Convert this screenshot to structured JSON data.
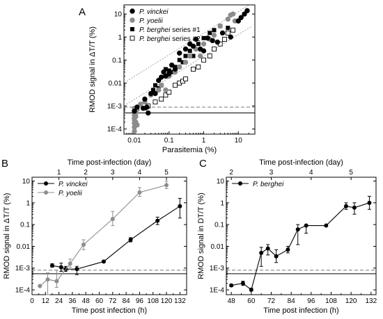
{
  "panel_labels": {
    "a": "A",
    "b": "B",
    "c": "C"
  },
  "colors": {
    "black": "#000000",
    "gray": "#8c8c8c",
    "light_gray": "#aaaaaa",
    "dashed": "#777777"
  },
  "chart_data": [
    {
      "id": "A",
      "type": "scatter",
      "xlabel": "Parasitemia (%)",
      "ylabel": "RMOD signal in ΔT/T (%)",
      "xscale": "log",
      "yscale": "log",
      "xlim": [
        0.005,
        30
      ],
      "ylim": [
        6e-05,
        25
      ],
      "xticks": [
        0.01,
        0.1,
        1,
        10
      ],
      "xtick_labels": [
        "0.01",
        "0.1",
        "1",
        "10"
      ],
      "yticks": [
        0.0001,
        0.001,
        0.01,
        0.1,
        1,
        10
      ],
      "ytick_labels": [
        "1E-4",
        "1E-3",
        "0.01",
        "0.1",
        "1",
        "10"
      ],
      "hlines": [
        {
          "y": 0.0005,
          "style": "solid"
        },
        {
          "y": 0.0009,
          "style": "dashed"
        }
      ],
      "fit_lines": [
        {
          "x": [
            0.006,
            25
          ],
          "y": [
            0.012,
            30
          ],
          "style": "dotted"
        },
        {
          "x": [
            0.006,
            25
          ],
          "y": [
            0.0012,
            3
          ],
          "style": "dotted"
        }
      ],
      "legend_position": "top-right",
      "series": [
        {
          "name": "P. vinckei",
          "marker": "filled-circle",
          "color": "#000000",
          "points": [
            [
              0.01,
              0.0006
            ],
            [
              0.012,
              0.0009
            ],
            [
              0.018,
              0.0008
            ],
            [
              0.023,
              0.0009
            ],
            [
              0.025,
              0.0005
            ],
            [
              0.02,
              0.002
            ],
            [
              0.03,
              0.0035
            ],
            [
              0.04,
              0.0035
            ],
            [
              0.05,
              0.013
            ],
            [
              0.06,
              0.018
            ],
            [
              0.07,
              0.03
            ],
            [
              0.08,
              0.02
            ],
            [
              0.1,
              0.025
            ],
            [
              0.12,
              0.06
            ],
            [
              0.15,
              0.04
            ],
            [
              0.2,
              0.2
            ],
            [
              0.3,
              0.3
            ],
            [
              0.4,
              0.5
            ],
            [
              0.5,
              0.4
            ],
            [
              0.6,
              0.8
            ],
            [
              0.8,
              0.3
            ],
            [
              1,
              0.25
            ],
            [
              1.3,
              0.9
            ],
            [
              1.8,
              0.7
            ],
            [
              2.5,
              0.6
            ],
            [
              3.5,
              1.5
            ],
            [
              6,
              1
            ],
            [
              10,
              5
            ],
            [
              12,
              7
            ],
            [
              15,
              10
            ],
            [
              18,
              14
            ]
          ]
        },
        {
          "name": "P. yoelii",
          "marker": "filled-circle",
          "color": "#8c8c8c",
          "points": [
            [
              0.01,
              8e-05
            ],
            [
              0.01,
              0.00012
            ],
            [
              0.01,
              0.00018
            ],
            [
              0.01,
              0.00025
            ],
            [
              0.01,
              0.0003
            ],
            [
              0.01,
              0.0004
            ],
            [
              0.01,
              0.0006
            ],
            [
              0.01,
              0.0008
            ],
            [
              0.011,
              0.0002
            ],
            [
              0.011,
              0.00035
            ],
            [
              0.011,
              0.0005
            ],
            [
              0.012,
              0.0007
            ],
            [
              0.012,
              0.00015
            ],
            [
              0.015,
              0.0012
            ],
            [
              0.02,
              0.0015
            ],
            [
              0.03,
              0.003
            ],
            [
              0.05,
              0.005
            ],
            [
              0.06,
              0.008
            ],
            [
              0.08,
              0.005
            ],
            [
              0.1,
              0.02
            ],
            [
              0.15,
              0.03
            ],
            [
              0.2,
              0.05
            ],
            [
              0.3,
              0.08
            ],
            [
              0.4,
              0.15
            ],
            [
              0.6,
              0.3
            ],
            [
              0.8,
              0.15
            ],
            [
              1,
              0.5
            ],
            [
              1.5,
              0.8
            ],
            [
              2,
              1.2
            ],
            [
              3,
              3
            ],
            [
              5,
              6
            ],
            [
              6,
              9
            ],
            [
              7,
              10
            ],
            [
              8,
              5
            ]
          ]
        },
        {
          "name": "P. berghei series #1",
          "marker": "filled-square",
          "color": "#000000",
          "points": [
            [
              0.02,
              0.0008
            ],
            [
              0.035,
              0.005
            ],
            [
              0.04,
              0.008
            ],
            [
              0.05,
              0.006
            ],
            [
              0.06,
              0.008
            ],
            [
              0.08,
              0.04
            ],
            [
              0.1,
              0.035
            ],
            [
              0.12,
              0.03
            ],
            [
              0.15,
              0.05
            ],
            [
              0.2,
              0.1
            ],
            [
              0.25,
              0.08
            ],
            [
              0.3,
              0.15
            ],
            [
              0.4,
              0.25
            ],
            [
              0.5,
              0.15
            ],
            [
              0.7,
              0.5
            ],
            [
              1,
              0.9
            ],
            [
              1.5,
              1.5
            ],
            [
              2,
              2
            ],
            [
              3,
              3
            ],
            [
              5,
              2.5
            ]
          ]
        },
        {
          "name": "P. berghei series #2",
          "marker": "open-square",
          "color": "#000000",
          "points": [
            [
              0.025,
              0.001
            ],
            [
              0.04,
              0.0015
            ],
            [
              0.06,
              0.002
            ],
            [
              0.08,
              0.003
            ],
            [
              0.1,
              0.004
            ],
            [
              0.15,
              0.008
            ],
            [
              0.2,
              0.01
            ],
            [
              0.25,
              0.012
            ],
            [
              0.3,
              0.015
            ],
            [
              0.5,
              0.04
            ],
            [
              0.7,
              0.05
            ],
            [
              1,
              0.1
            ],
            [
              1.5,
              0.15
            ],
            [
              2,
              0.3
            ],
            [
              3,
              0.5
            ],
            [
              4,
              0.8
            ],
            [
              5,
              1.5
            ],
            [
              7,
              2
            ]
          ]
        }
      ]
    },
    {
      "id": "B",
      "type": "line",
      "xlabel": "Time post infection (h)",
      "x2label": "Time post-infection (day)",
      "ylabel": "RMOD signal in ΔT/T (%)",
      "yscale": "log",
      "xlim": [
        0,
        138
      ],
      "ylim": [
        6e-05,
        15
      ],
      "xticks": [
        0,
        12,
        24,
        36,
        48,
        60,
        72,
        84,
        96,
        108,
        120,
        132
      ],
      "x2ticks": [
        1,
        2,
        3,
        4,
        5
      ],
      "yticks": [
        0.0001,
        0.001,
        0.01,
        0.1,
        1,
        10
      ],
      "ytick_labels": [
        "1E-4",
        "1E-3",
        "0.01",
        "0.1",
        "1",
        "10"
      ],
      "hlines": [
        {
          "y": 0.00055,
          "style": "solid"
        },
        {
          "y": 0.0008,
          "style": "dashed"
        }
      ],
      "legend_position": "top-left",
      "series": [
        {
          "name": "P. vinckei",
          "color": "#000000",
          "x": [
            18,
            26,
            30,
            40,
            64,
            88,
            112,
            132
          ],
          "y": [
            0.0013,
            0.0011,
            0.0009,
            0.0009,
            0.002,
            0.02,
            0.15,
            0.7
          ],
          "err_lo": [
            0.0011,
            0.0007,
            0.0007,
            0.0005,
            0.0018,
            0.016,
            0.1,
            0.2
          ],
          "err_hi": [
            0.0016,
            0.0017,
            0.0012,
            0.0012,
            0.0023,
            0.025,
            0.22,
            1.6
          ]
        },
        {
          "name": "P. yoelii",
          "color": "#8c8c8c",
          "x": [
            7,
            14,
            22,
            34,
            46,
            72,
            96,
            120
          ],
          "y": [
            0.00015,
            0.0003,
            0.00025,
            0.0016,
            0.012,
            0.18,
            3,
            6.5
          ],
          "err_lo": [
            0.00015,
            6e-05,
            0.00013,
            0.0011,
            0.007,
            0.09,
            2,
            4.5
          ],
          "err_hi": [
            0.00015,
            0.0006,
            0.0008,
            0.0026,
            0.02,
            0.4,
            5,
            10
          ]
        }
      ]
    },
    {
      "id": "C",
      "type": "line",
      "xlabel": "Time post infection (h)",
      "x2label": "Time post-infection (day)",
      "ylabel": "RMOD signal in DT/T (%)",
      "yscale": "log",
      "xlim": [
        45,
        135
      ],
      "ylim": [
        6e-05,
        15
      ],
      "xticks": [
        48,
        60,
        72,
        84,
        96,
        108,
        120,
        132
      ],
      "x2ticks": [
        2,
        3,
        4,
        5
      ],
      "yticks": [
        0.0001,
        0.001,
        0.01,
        0.1,
        1,
        10
      ],
      "ytick_labels": [
        "1E-4",
        "1E-3",
        "0.01",
        "0.1",
        "1",
        "10"
      ],
      "hlines": [
        {
          "y": 0.00055,
          "style": "solid"
        },
        {
          "y": 0.0008,
          "style": "dashed"
        }
      ],
      "legend_position": "top-left",
      "series": [
        {
          "name": "P. berghei",
          "color": "#000000",
          "x": [
            48,
            55,
            60,
            66,
            70,
            75,
            82,
            88,
            93,
            105,
            117,
            122,
            131
          ],
          "y": [
            0.00016,
            0.0002,
            0.0001,
            0.005,
            0.008,
            0.0035,
            0.007,
            0.06,
            0.09,
            0.09,
            0.7,
            0.6,
            1.0
          ],
          "err_lo": [
            0.00014,
            0.00016,
            9e-05,
            0.0012,
            0.004,
            0.0018,
            0.005,
            0.012,
            0.04,
            0.09,
            0.5,
            0.3,
            0.5
          ],
          "err_hi": [
            0.00018,
            0.00025,
            0.00012,
            0.009,
            0.012,
            0.007,
            0.01,
            0.1,
            0.1,
            0.09,
            1.0,
            1.0,
            2.0
          ]
        }
      ]
    }
  ]
}
